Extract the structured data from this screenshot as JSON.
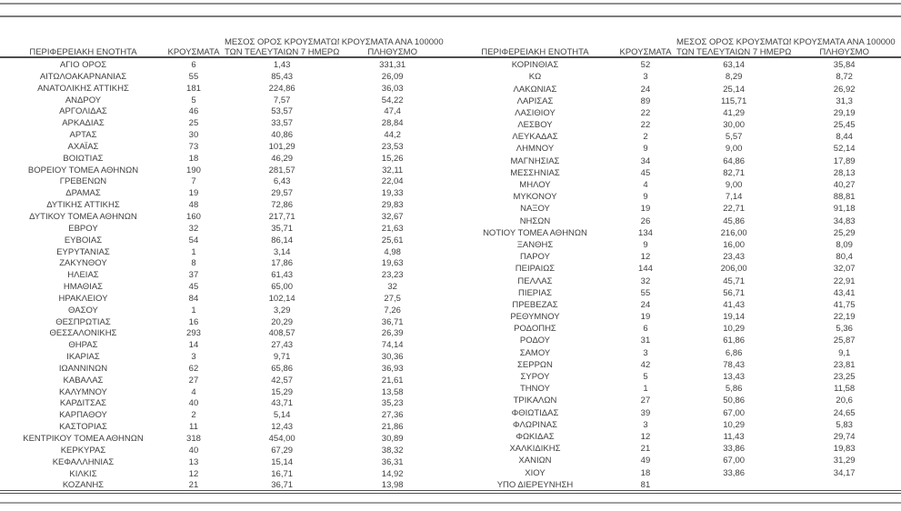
{
  "colors": {
    "text": "#3f3f3f",
    "dark_rule": "#4f4f4f",
    "gray_rule": "#8f8f8f",
    "background": "#ffffff"
  },
  "columns": {
    "region": "ΠΕΡΙΦΕΡΕΙΑΚΗ ΕΝΟΤΗΤΑ",
    "cases": "ΚΡΟΥΣΜΑΤΑ",
    "avg7_line1": "ΜΕΣΟΣ ΟΡΟΣ ΚΡΟΥΣΜΑΤΩΝ",
    "avg7_line2": "ΤΩΝ ΤΕΛΕΥΤΑΙΩΝ 7 ΗΜΕΡΩΝ",
    "per100k_line1": "ΚΡΟΥΣΜΑΤΑ ΑΝΑ 100000",
    "per100k_line2": "ΠΛΗΘΥΣΜΟ"
  },
  "left_table_rows": [
    [
      "ΑΓΙΟ ΟΡΟΣ",
      "6",
      "1,43",
      "331,31"
    ],
    [
      "ΑΙΤΩΛΟΑΚΑΡΝΑΝΙΑΣ",
      "55",
      "85,43",
      "26,09"
    ],
    [
      "ΑΝΑΤΟΛΙΚΗΣ ΑΤΤΙΚΗΣ",
      "181",
      "224,86",
      "36,03"
    ],
    [
      "ΑΝΔΡΟΥ",
      "5",
      "7,57",
      "54,22"
    ],
    [
      "ΑΡΓΟΛΙΔΑΣ",
      "46",
      "53,57",
      "47,4"
    ],
    [
      "ΑΡΚΑΔΙΑΣ",
      "25",
      "33,57",
      "28,84"
    ],
    [
      "ΑΡΤΑΣ",
      "30",
      "40,86",
      "44,2"
    ],
    [
      "ΑΧΑΪΑΣ",
      "73",
      "101,29",
      "23,53"
    ],
    [
      "ΒΟΙΩΤΙΑΣ",
      "18",
      "46,29",
      "15,26"
    ],
    [
      "ΒΟΡΕΙΟΥ ΤΟΜΕΑ ΑΘΗΝΩΝ",
      "190",
      "281,57",
      "32,11"
    ],
    [
      "ΓΡΕΒΕΝΩΝ",
      "7",
      "6,43",
      "22,04"
    ],
    [
      "ΔΡΑΜΑΣ",
      "19",
      "29,57",
      "19,33"
    ],
    [
      "ΔΥΤΙΚΗΣ ΑΤΤΙΚΗΣ",
      "48",
      "72,86",
      "29,83"
    ],
    [
      "ΔΥΤΙΚΟΥ ΤΟΜΕΑ ΑΘΗΝΩΝ",
      "160",
      "217,71",
      "32,67"
    ],
    [
      "ΕΒΡΟΥ",
      "32",
      "35,71",
      "21,63"
    ],
    [
      "ΕΥΒΟΙΑΣ",
      "54",
      "86,14",
      "25,61"
    ],
    [
      "ΕΥΡΥΤΑΝΙΑΣ",
      "1",
      "3,14",
      "4,98"
    ],
    [
      "ΖΑΚΥΝΘΟΥ",
      "8",
      "17,86",
      "19,63"
    ],
    [
      "ΗΛΕΙΑΣ",
      "37",
      "61,43",
      "23,23"
    ],
    [
      "ΗΜΑΘΙΑΣ",
      "45",
      "65,00",
      "32"
    ],
    [
      "ΗΡΑΚΛΕΙΟΥ",
      "84",
      "102,14",
      "27,5"
    ],
    [
      "ΘΑΣΟΥ",
      "1",
      "3,29",
      "7,26"
    ],
    [
      "ΘΕΣΠΡΩΤΙΑΣ",
      "16",
      "20,29",
      "36,71"
    ],
    [
      "ΘΕΣΣΑΛΟΝΙΚΗΣ",
      "293",
      "408,57",
      "26,39"
    ],
    [
      "ΘΗΡΑΣ",
      "14",
      "27,43",
      "74,14"
    ],
    [
      "ΙΚΑΡΙΑΣ",
      "3",
      "9,71",
      "30,36"
    ],
    [
      "ΙΩΑΝΝΙΝΩΝ",
      "62",
      "65,86",
      "36,93"
    ],
    [
      "ΚΑΒΑΛΑΣ",
      "27",
      "42,57",
      "21,61"
    ],
    [
      "ΚΑΛΥΜΝΟΥ",
      "4",
      "15,29",
      "13,58"
    ],
    [
      "ΚΑΡΔΙΤΣΑΣ",
      "40",
      "43,71",
      "35,23"
    ],
    [
      "ΚΑΡΠΑΘΟΥ",
      "2",
      "5,14",
      "27,36"
    ],
    [
      "ΚΑΣΤΟΡΙΑΣ",
      "11",
      "12,43",
      "21,86"
    ],
    [
      "ΚΕΝΤΡΙΚΟΥ ΤΟΜΕΑ ΑΘΗΝΩΝ",
      "318",
      "454,00",
      "30,89"
    ],
    [
      "ΚΕΡΚΥΡΑΣ",
      "40",
      "67,29",
      "38,32"
    ],
    [
      "ΚΕΦΑΛΛΗΝΙΑΣ",
      "13",
      "15,14",
      "36,31"
    ],
    [
      "ΚΙΛΚΙΣ",
      "12",
      "16,71",
      "14,92"
    ],
    [
      "ΚΟΖΑΝΗΣ",
      "21",
      "36,71",
      "13,98"
    ]
  ],
  "right_table_rows": [
    [
      "ΚΟΡΙΝΘΙΑΣ",
      "52",
      "63,14",
      "35,84"
    ],
    [
      "ΚΩ",
      "3",
      "8,29",
      "8,72"
    ],
    [
      "ΛΑΚΩΝΙΑΣ",
      "24",
      "25,14",
      "26,92"
    ],
    [
      "ΛΑΡΙΣΑΣ",
      "89",
      "115,71",
      "31,3"
    ],
    [
      "ΛΑΣΙΘΙΟΥ",
      "22",
      "41,29",
      "29,19"
    ],
    [
      "ΛΕΣΒΟΥ",
      "22",
      "30,00",
      "25,45"
    ],
    [
      "ΛΕΥΚΑΔΑΣ",
      "2",
      "5,57",
      "8,44"
    ],
    [
      "ΛΗΜΝΟΥ",
      "9",
      "9,00",
      "52,14"
    ],
    [
      "ΜΑΓΝΗΣΙΑΣ",
      "34",
      "64,86",
      "17,89"
    ],
    [
      "ΜΕΣΣΗΝΙΑΣ",
      "45",
      "82,71",
      "28,13"
    ],
    [
      "ΜΗΛΟΥ",
      "4",
      "9,00",
      "40,27"
    ],
    [
      "ΜΥΚΟΝΟΥ",
      "9",
      "7,14",
      "88,81"
    ],
    [
      "ΝΑΞΟΥ",
      "19",
      "22,71",
      "91,18"
    ],
    [
      "ΝΗΣΩΝ",
      "26",
      "45,86",
      "34,83"
    ],
    [
      "ΝΟΤΙΟΥ ΤΟΜΕΑ ΑΘΗΝΩΝ",
      "134",
      "216,00",
      "25,29"
    ],
    [
      "ΞΑΝΘΗΣ",
      "9",
      "16,00",
      "8,09"
    ],
    [
      "ΠΑΡΟΥ",
      "12",
      "23,43",
      "80,4"
    ],
    [
      "ΠΕΙΡΑΙΩΣ",
      "144",
      "206,00",
      "32,07"
    ],
    [
      "ΠΕΛΛΑΣ",
      "32",
      "45,71",
      "22,91"
    ],
    [
      "ΠΙΕΡΙΑΣ",
      "55",
      "56,71",
      "43,41"
    ],
    [
      "ΠΡΕΒΕΖΑΣ",
      "24",
      "41,43",
      "41,75"
    ],
    [
      "ΡΕΘΥΜΝΟΥ",
      "19",
      "19,14",
      "22,19"
    ],
    [
      "ΡΟΔΟΠΗΣ",
      "6",
      "10,29",
      "5,36"
    ],
    [
      "ΡΟΔΟΥ",
      "31",
      "61,86",
      "25,87"
    ],
    [
      "ΣΑΜΟΥ",
      "3",
      "6,86",
      "9,1"
    ],
    [
      "ΣΕΡΡΩΝ",
      "42",
      "78,43",
      "23,81"
    ],
    [
      "ΣΥΡΟΥ",
      "5",
      "13,43",
      "23,25"
    ],
    [
      "ΤΗΝΟΥ",
      "1",
      "5,86",
      "11,58"
    ],
    [
      "ΤΡΙΚΑΛΩΝ",
      "27",
      "50,86",
      "20,6"
    ],
    [
      "ΦΘΙΩΤΙΔΑΣ",
      "39",
      "67,00",
      "24,65"
    ],
    [
      "ΦΛΩΡΙΝΑΣ",
      "3",
      "10,29",
      "5,83"
    ],
    [
      "ΦΩΚΙΔΑΣ",
      "12",
      "11,43",
      "29,74"
    ],
    [
      "ΧΑΛΚΙΔΙΚΗΣ",
      "21",
      "33,86",
      "19,83"
    ],
    [
      "ΧΑΝΙΩΝ",
      "49",
      "67,00",
      "31,29"
    ],
    [
      "ΧΙΟΥ",
      "18",
      "33,86",
      "34,17"
    ],
    [
      "ΥΠΟ ΔΙΕΡΕΥΝΗΣΗ",
      "81",
      "",
      ""
    ]
  ]
}
